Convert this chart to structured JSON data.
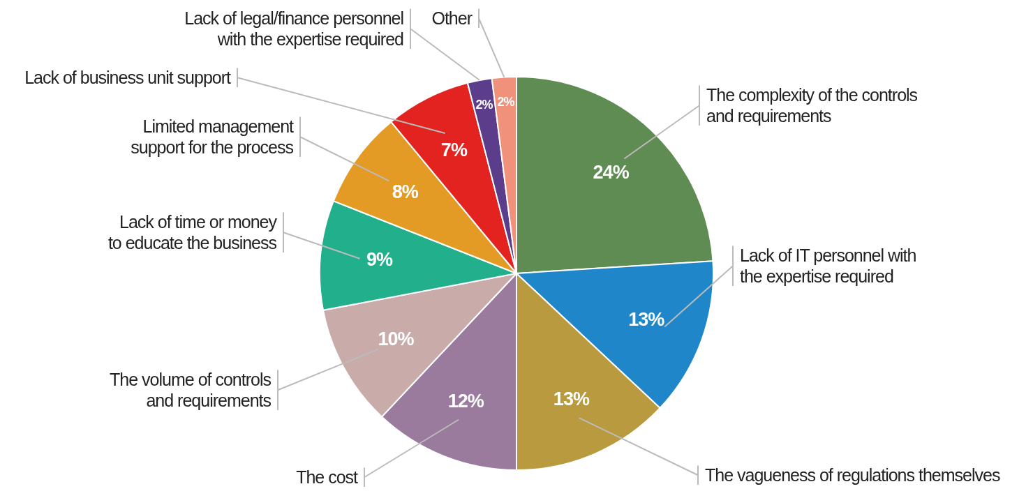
{
  "chart_data": {
    "type": "pie",
    "categories": [
      "The complexity of the controls and requirements",
      "Lack of IT personnel with the expertise required",
      "The vagueness of regulations themselves",
      "The cost",
      "The volume of controls and requirements",
      "Lack of time or money to educate the business",
      "Limited management support for the process",
      "Lack of business unit support",
      "Lack of legal/finance personnel with the expertise required",
      "Other"
    ],
    "values": [
      24,
      13,
      13,
      12,
      10,
      9,
      8,
      7,
      2,
      2
    ],
    "colors": [
      "#5f8c52",
      "#1f86c9",
      "#b99a3e",
      "#9a7b9e",
      "#c9abaa",
      "#22b08c",
      "#e39b25",
      "#e2231f",
      "#5b3d8c",
      "#f0917c"
    ],
    "value_labels": [
      "24%",
      "13%",
      "13%",
      "12%",
      "10%",
      "9%",
      "8%",
      "7%",
      "2%",
      "2%"
    ]
  }
}
